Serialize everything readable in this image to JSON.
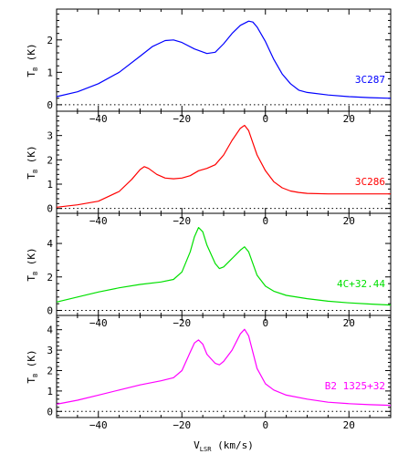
{
  "chart_data": [
    {
      "type": "line",
      "source_label": "3C287",
      "color": "#0000ff",
      "ylabel": "T",
      "ylabel_sub": "B",
      "ylabel_unit": "(K)",
      "xlim": [
        -50,
        30
      ],
      "ylim": [
        -0.2,
        2.95
      ],
      "yticks": [
        0,
        1,
        2
      ],
      "xticks": [
        -40,
        -20,
        0,
        20
      ],
      "series": [
        {
          "x": [
            -50,
            -45,
            -40,
            -35,
            -30,
            -27,
            -24,
            -22,
            -20,
            -17,
            -14,
            -12,
            -10,
            -8,
            -6,
            -4,
            -3,
            -2,
            0,
            2,
            4,
            6,
            8,
            10,
            15,
            20,
            25,
            30
          ],
          "y": [
            0.25,
            0.4,
            0.65,
            1.0,
            1.5,
            1.8,
            1.98,
            2.0,
            1.92,
            1.72,
            1.58,
            1.62,
            1.88,
            2.2,
            2.45,
            2.58,
            2.55,
            2.4,
            1.95,
            1.4,
            0.95,
            0.65,
            0.45,
            0.38,
            0.3,
            0.25,
            0.22,
            0.2
          ]
        }
      ]
    },
    {
      "type": "line",
      "source_label": "3C286",
      "color": "#ff0000",
      "ylabel": "T",
      "ylabel_sub": "B",
      "ylabel_unit": "(K)",
      "xlim": [
        -50,
        30
      ],
      "ylim": [
        -0.2,
        4.0
      ],
      "yticks": [
        0,
        1,
        2,
        3
      ],
      "xticks": [
        -40,
        -20,
        0,
        20
      ],
      "series": [
        {
          "x": [
            -50,
            -45,
            -40,
            -35,
            -32,
            -30,
            -29,
            -28,
            -26,
            -24,
            -22,
            -20,
            -18,
            -16,
            -14,
            -12,
            -10,
            -8,
            -6,
            -5,
            -4,
            -3,
            -2,
            0,
            2,
            4,
            6,
            8,
            10,
            15,
            20,
            25,
            30
          ],
          "y": [
            0.05,
            0.15,
            0.3,
            0.7,
            1.2,
            1.6,
            1.72,
            1.65,
            1.4,
            1.25,
            1.22,
            1.25,
            1.35,
            1.55,
            1.65,
            1.8,
            2.2,
            2.8,
            3.3,
            3.42,
            3.2,
            2.7,
            2.2,
            1.55,
            1.1,
            0.85,
            0.72,
            0.66,
            0.62,
            0.6,
            0.6,
            0.6,
            0.6
          ]
        }
      ]
    },
    {
      "type": "line",
      "source_label": "4C+32.44",
      "color": "#00e000",
      "ylabel": "T",
      "ylabel_sub": "B",
      "ylabel_unit": "(K)",
      "xlim": [
        -50,
        30
      ],
      "ylim": [
        -0.3,
        5.8
      ],
      "yticks": [
        0,
        2,
        4
      ],
      "xticks": [
        -40,
        -20,
        0,
        20
      ],
      "series": [
        {
          "x": [
            -50,
            -45,
            -40,
            -35,
            -30,
            -25,
            -22,
            -20,
            -18,
            -17,
            -16,
            -15,
            -14,
            -12,
            -11,
            -10,
            -8,
            -6,
            -5,
            -4,
            -3,
            -2,
            0,
            2,
            5,
            10,
            15,
            20,
            25,
            30
          ],
          "y": [
            0.5,
            0.8,
            1.1,
            1.35,
            1.55,
            1.7,
            1.85,
            2.3,
            3.5,
            4.4,
            4.95,
            4.7,
            3.9,
            2.8,
            2.5,
            2.6,
            3.1,
            3.6,
            3.8,
            3.5,
            2.8,
            2.1,
            1.45,
            1.15,
            0.9,
            0.7,
            0.55,
            0.45,
            0.38,
            0.32
          ]
        }
      ]
    },
    {
      "type": "line",
      "source_label": "B2 1325+32",
      "color": "#ff00ff",
      "ylabel": "T",
      "ylabel_sub": "B",
      "ylabel_unit": "(K)",
      "xlim": [
        -50,
        30
      ],
      "ylim": [
        -0.3,
        4.7
      ],
      "yticks": [
        0,
        1,
        2,
        3,
        4
      ],
      "xticks": [
        -40,
        -20,
        0,
        20
      ],
      "xlabel": "V",
      "xlabel_sub": "LSR",
      "xlabel_unit": "(km/s)",
      "series": [
        {
          "x": [
            -50,
            -45,
            -40,
            -35,
            -30,
            -25,
            -22,
            -20,
            -18,
            -17,
            -16,
            -15,
            -14,
            -12,
            -11,
            -10,
            -8,
            -6,
            -5,
            -4,
            -3,
            -2,
            0,
            2,
            5,
            10,
            15,
            20,
            25,
            30
          ],
          "y": [
            0.35,
            0.55,
            0.8,
            1.05,
            1.3,
            1.5,
            1.65,
            2.0,
            2.9,
            3.35,
            3.5,
            3.3,
            2.8,
            2.35,
            2.28,
            2.45,
            3.0,
            3.8,
            4.02,
            3.7,
            2.9,
            2.1,
            1.35,
            1.05,
            0.8,
            0.6,
            0.45,
            0.38,
            0.33,
            0.3
          ]
        }
      ]
    }
  ]
}
